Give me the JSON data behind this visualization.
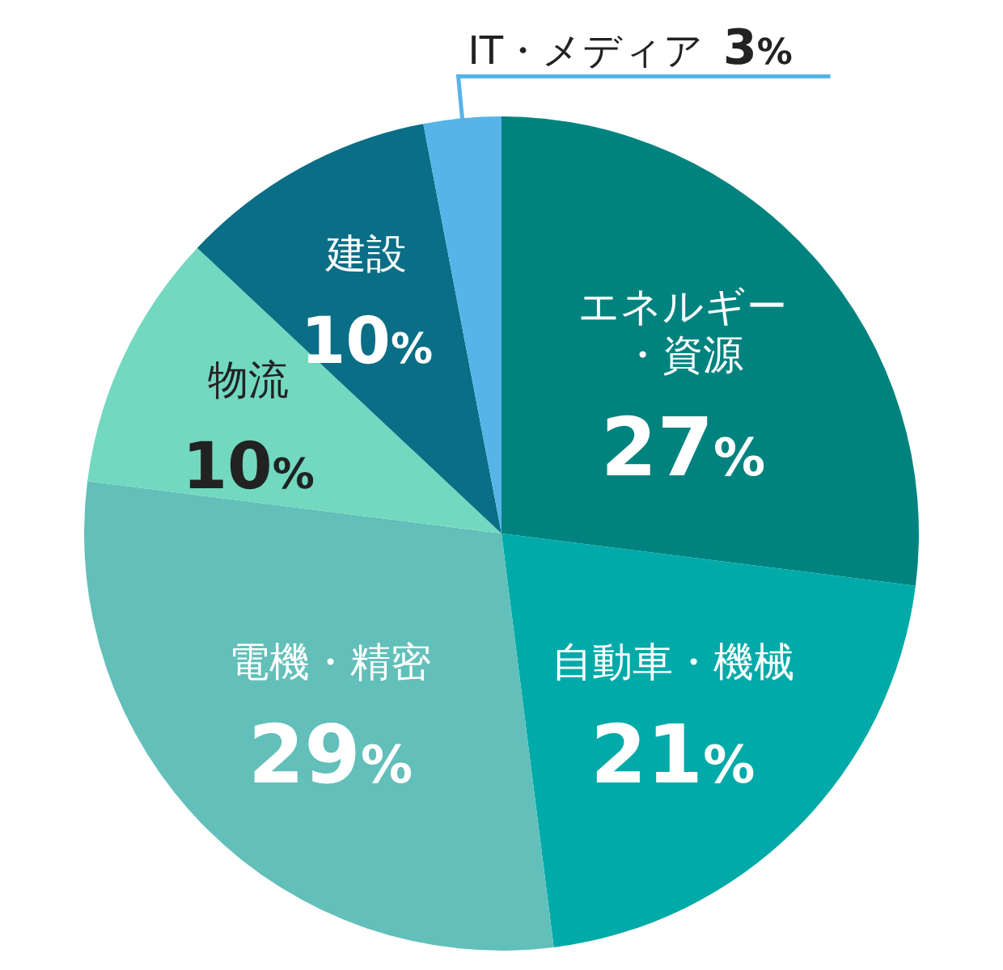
{
  "chart_data": {
    "type": "pie",
    "categories": [
      "エネルギー・資源",
      "自動車・機械",
      "電機・精密",
      "物流",
      "建設",
      "IT・メディア"
    ],
    "values": [
      27,
      21,
      29,
      10,
      10,
      3
    ],
    "value_labels": [
      "27%",
      "21%",
      "29%",
      "10%",
      "10%",
      "3%"
    ],
    "colors": [
      "#00837f",
      "#00aaa8",
      "#62bfb9",
      "#72d9c0",
      "#0a6e86",
      "#56b4e8"
    ]
  }
}
